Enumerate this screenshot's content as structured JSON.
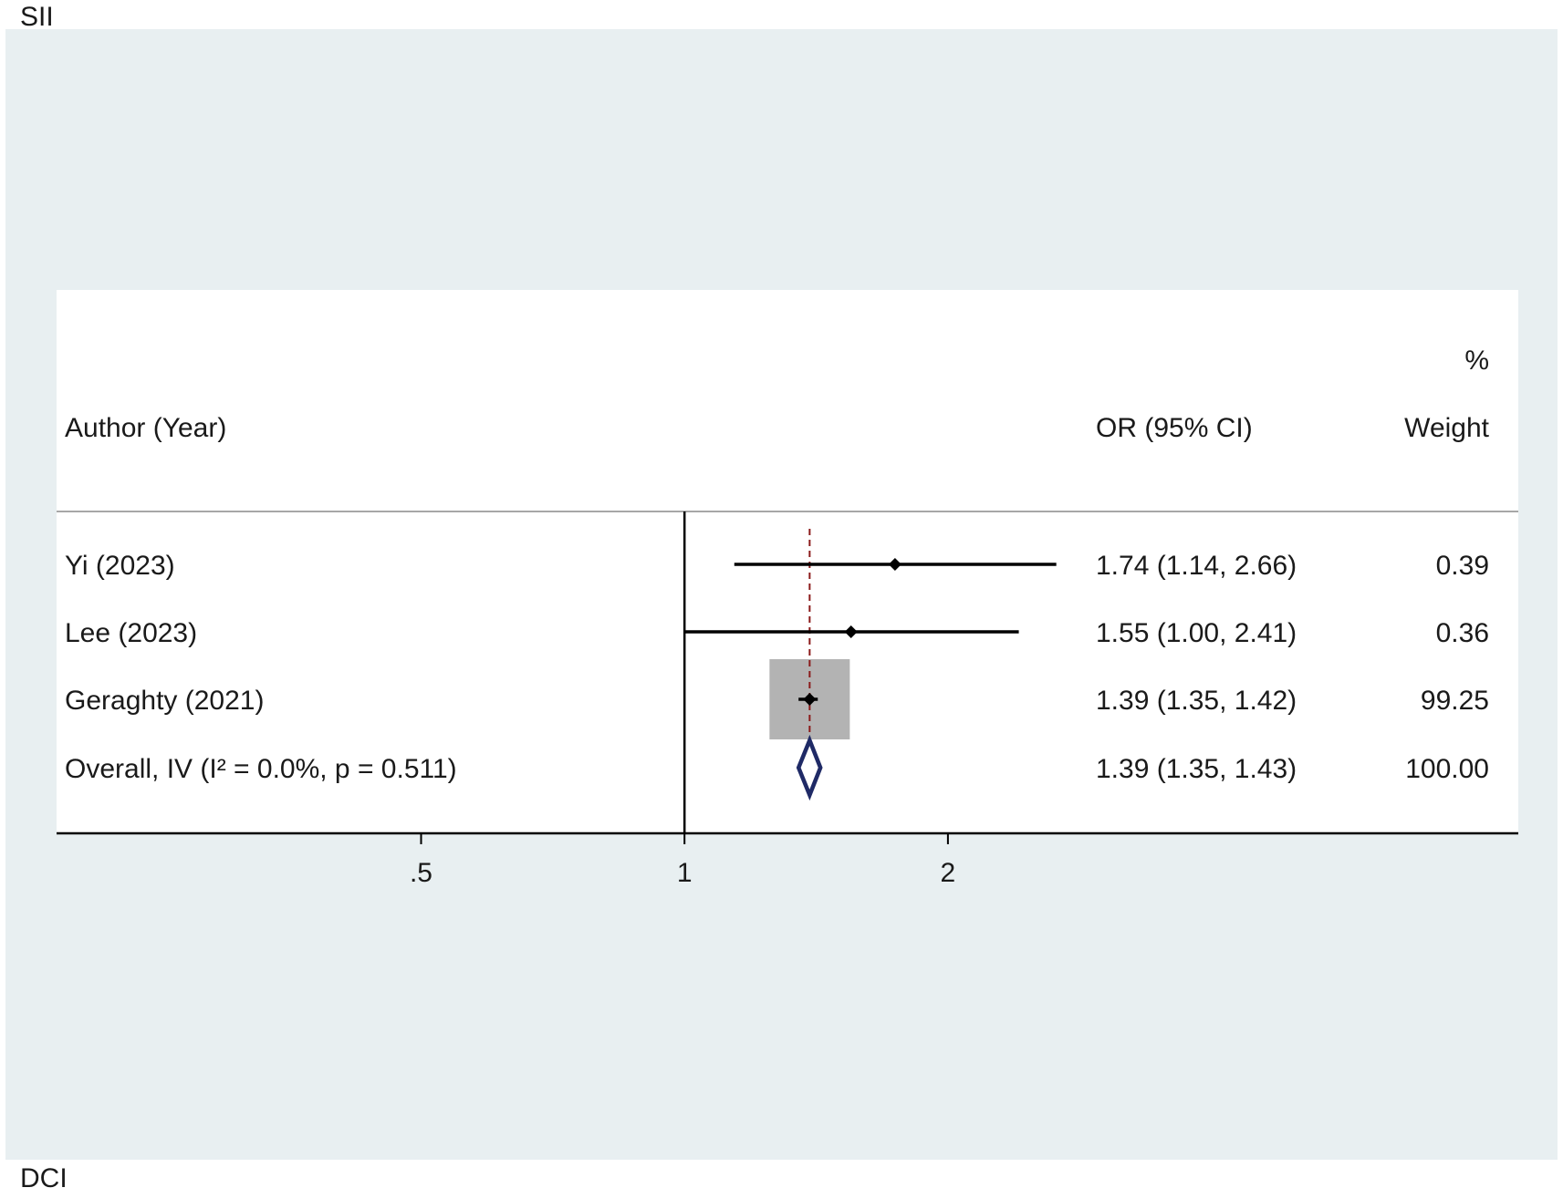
{
  "figure": {
    "top_label": "SII",
    "bottom_label": "DCI"
  },
  "colors": {
    "outer_background": "#e8eff1",
    "plot_background": "#ffffff",
    "text": "#1a1a1a",
    "study_line": "#000000",
    "weight_box": "#b3b3b3",
    "overall_diamond": "#1f2a66",
    "pooled_line": "#8b1a1a"
  },
  "chart_data": {
    "type": "forest",
    "scale": "log",
    "xlim": [
      0.28,
      4.45
    ],
    "reference_value": 1,
    "pooled_estimate": 1.39,
    "headers": {
      "author": "Author (Year)",
      "effect": "OR (95% CI)",
      "weight_pct": "%",
      "weight": "Weight"
    },
    "x_ticks": [
      {
        "value": 0.5,
        "label": ".5"
      },
      {
        "value": 1,
        "label": "1"
      },
      {
        "value": 2,
        "label": "2"
      }
    ],
    "studies": [
      {
        "label": "Yi (2023)",
        "or": 1.74,
        "lower": 1.14,
        "upper": 2.66,
        "ci_text": "1.74 (1.14, 2.66)",
        "weight": 0.39,
        "weight_text": "0.39"
      },
      {
        "label": "Lee (2023)",
        "or": 1.55,
        "lower": 1.0,
        "upper": 2.41,
        "ci_text": "1.55 (1.00, 2.41)",
        "weight": 0.36,
        "weight_text": "0.36"
      },
      {
        "label": "Geraghty (2021)",
        "or": 1.39,
        "lower": 1.35,
        "upper": 1.42,
        "ci_text": "1.39 (1.35, 1.42)",
        "weight": 99.25,
        "weight_text": "99.25"
      }
    ],
    "overall": {
      "label": "Overall, IV (I² = 0.0%, p = 0.511)",
      "or": 1.39,
      "lower": 1.35,
      "upper": 1.43,
      "ci_text": "1.39 (1.35, 1.43)",
      "weight": 100.0,
      "weight_text": "100.00"
    }
  }
}
